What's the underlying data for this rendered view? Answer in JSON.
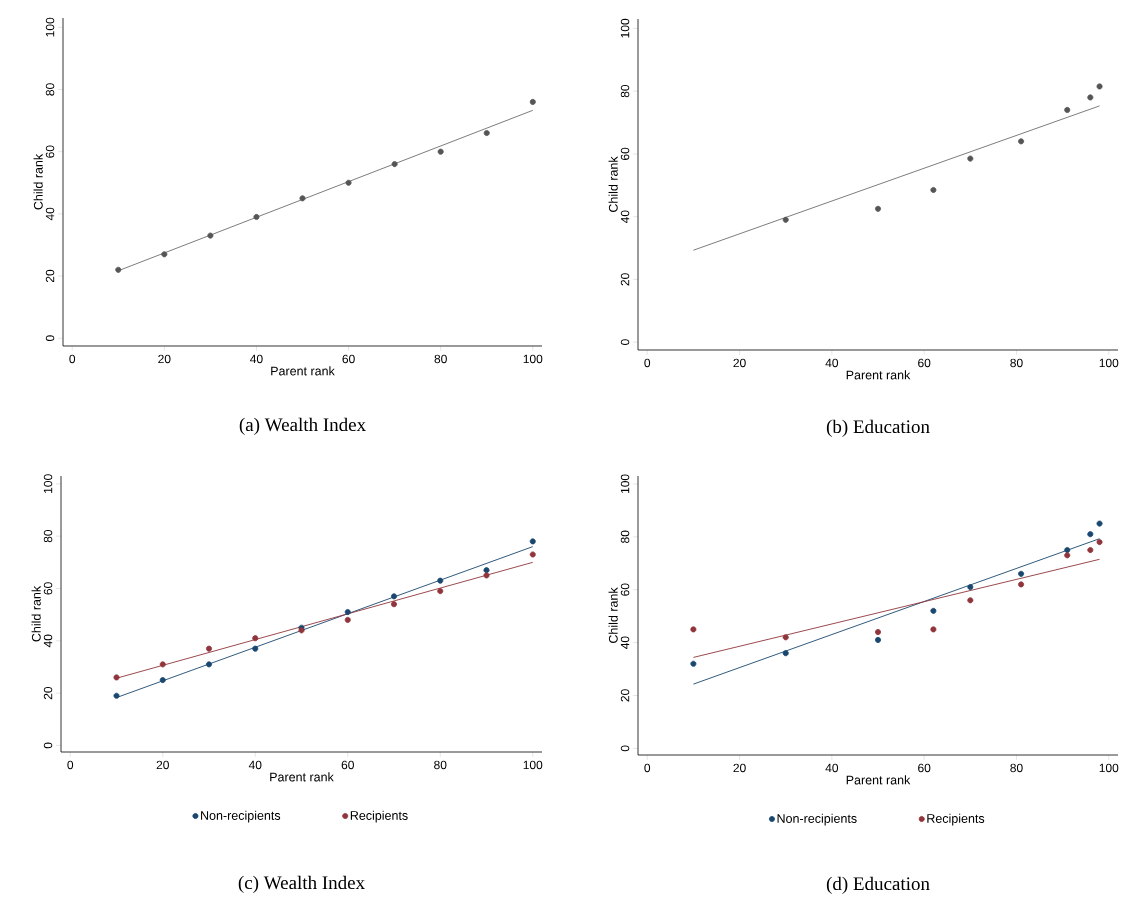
{
  "chart_data": [
    {
      "type": "scatter",
      "title": "(a) Wealth Index",
      "xlabel": "Parent rank",
      "ylabel": "Child rank",
      "xlim": [
        -2,
        102
      ],
      "ylim": [
        -2.5,
        103
      ],
      "xticks": [
        0,
        20,
        40,
        60,
        80,
        100
      ],
      "yticks": [
        0,
        20,
        40,
        60,
        80,
        100
      ],
      "legend": false,
      "marker": "circle",
      "series": [
        {
          "color": "#555555",
          "x": [
            10,
            20,
            30,
            40,
            50,
            60,
            70,
            80,
            90,
            100
          ],
          "values": [
            22,
            27,
            33,
            39,
            45,
            50,
            56,
            60,
            66,
            76
          ]
        },
        {
          "type": "line",
          "color": "#6e6e6e",
          "marker": "none",
          "x": [
            10,
            100
          ],
          "values": [
            21.7,
            73.3
          ]
        }
      ]
    },
    {
      "type": "scatter",
      "title": "(b) Education",
      "xlabel": "Parent rank",
      "ylabel": "Child rank",
      "xlim": [
        -2,
        102
      ],
      "ylim": [
        -2.5,
        103
      ],
      "xticks": [
        0,
        20,
        40,
        60,
        80,
        100
      ],
      "yticks": [
        0,
        20,
        40,
        60,
        80,
        100
      ],
      "legend": false,
      "marker": "circle",
      "series": [
        {
          "color": "#555555",
          "x": [
            30,
            50,
            62,
            70,
            81,
            91,
            96,
            98
          ],
          "values": [
            39,
            42.5,
            48.5,
            58.5,
            64,
            74,
            78,
            81.5
          ]
        },
        {
          "type": "line",
          "color": "#6e6e6e",
          "marker": "none",
          "x": [
            10,
            98
          ],
          "values": [
            29.3,
            75.3
          ]
        }
      ]
    },
    {
      "type": "scatter",
      "title": "(c) Wealth Index",
      "xlabel": "Parent rank",
      "ylabel": "Child rank",
      "xlim": [
        -2,
        102
      ],
      "ylim": [
        -2.5,
        103
      ],
      "xticks": [
        0,
        20,
        40,
        60,
        80,
        100
      ],
      "yticks": [
        0,
        20,
        40,
        60,
        80,
        100
      ],
      "legend": "bottom",
      "marker": "circle",
      "series": [
        {
          "name": "Non-recipients",
          "color": "#1a476f",
          "x": [
            10,
            20,
            30,
            40,
            50,
            60,
            70,
            80,
            90,
            100
          ],
          "values": [
            19,
            25,
            31,
            37,
            45,
            51,
            57,
            63,
            67,
            78
          ]
        },
        {
          "name": "Recipients",
          "color": "#90353b",
          "x": [
            10,
            20,
            30,
            40,
            50,
            60,
            70,
            80,
            90,
            100
          ],
          "values": [
            26,
            31,
            37,
            41,
            44,
            48,
            54,
            59,
            65,
            73
          ]
        },
        {
          "type": "line",
          "color": "#1a476f",
          "marker": "none",
          "x": [
            10,
            100
          ],
          "values": [
            18.3,
            76
          ]
        },
        {
          "type": "line",
          "color": "#90353b",
          "marker": "none",
          "x": [
            10,
            100
          ],
          "values": [
            25.7,
            70
          ]
        }
      ]
    },
    {
      "type": "scatter",
      "title": "(d) Education",
      "xlabel": "Parent rank",
      "ylabel": "Child rank",
      "xlim": [
        -2,
        102
      ],
      "ylim": [
        -2.5,
        103
      ],
      "xticks": [
        0,
        20,
        40,
        60,
        80,
        100
      ],
      "yticks": [
        0,
        20,
        40,
        60,
        80,
        100
      ],
      "legend": "bottom",
      "marker": "circle",
      "series": [
        {
          "name": "Non-recipients",
          "color": "#1a476f",
          "x": [
            10,
            30,
            50,
            62,
            70,
            81,
            91,
            96,
            98
          ],
          "values": [
            32,
            36,
            41,
            52,
            61,
            66,
            75,
            81,
            85
          ]
        },
        {
          "name": "Recipients",
          "color": "#90353b",
          "x": [
            10,
            30,
            50,
            62,
            70,
            81,
            91,
            96,
            98
          ],
          "values": [
            45,
            42,
            44,
            45,
            56,
            62,
            73,
            75,
            78
          ]
        },
        {
          "type": "line",
          "color": "#1a476f",
          "marker": "none",
          "x": [
            10,
            98
          ],
          "values": [
            24.3,
            79.3
          ]
        },
        {
          "type": "line",
          "color": "#90353b",
          "marker": "none",
          "x": [
            10,
            98
          ],
          "values": [
            34.4,
            71.5
          ]
        }
      ]
    }
  ]
}
